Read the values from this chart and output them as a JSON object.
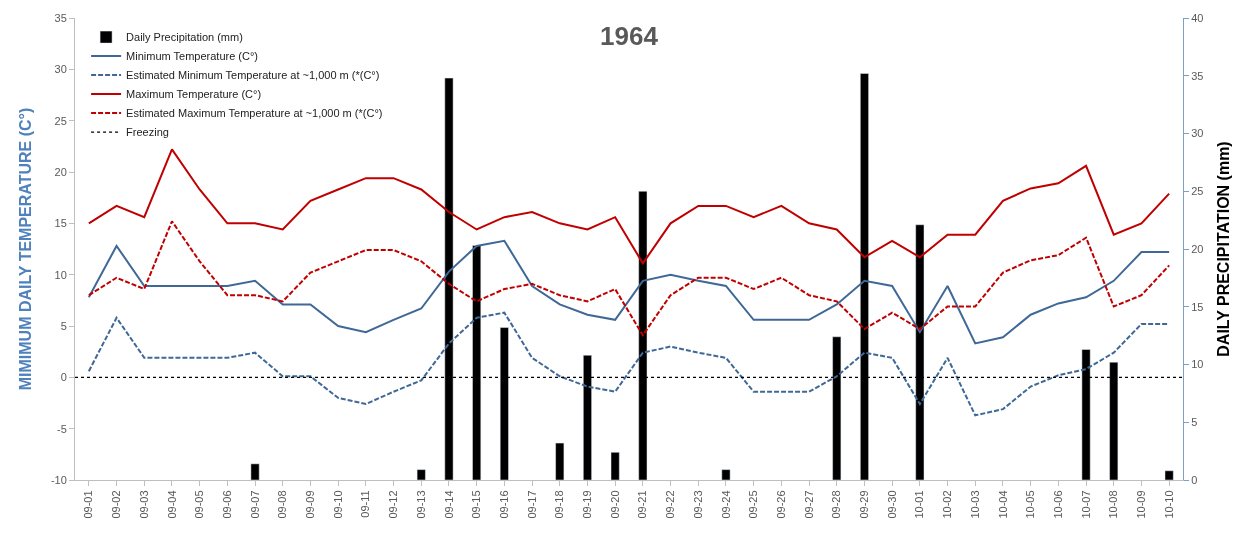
{
  "chart_data": {
    "type": "line",
    "title": "1964",
    "ylabel": "MIMIMUM DAILY TEMPERATURE (C°)",
    "y2label": "DAILY PRECIPITATION (mm)",
    "categories": [
      "09-01",
      "09-02",
      "09-03",
      "09-04",
      "09-05",
      "09-06",
      "09-07",
      "09-08",
      "09-09",
      "09-10",
      "09-11",
      "09-12",
      "09-13",
      "09-14",
      "09-15",
      "09-16",
      "09-17",
      "09-18",
      "09-19",
      "09-20",
      "09-21",
      "09-22",
      "09-23",
      "09-24",
      "09-25",
      "09-26",
      "09-27",
      "09-28",
      "09-29",
      "09-30",
      "10-01",
      "10-02",
      "10-03",
      "10-04",
      "10-05",
      "10-06",
      "10-07",
      "10-08",
      "10-09",
      "10-10"
    ],
    "series": [
      {
        "name": "Daily Precipitation (mm)",
        "type": "bar",
        "axis": "y2",
        "color": "#000000",
        "values": [
          null,
          null,
          null,
          null,
          null,
          null,
          1.4,
          null,
          null,
          null,
          null,
          null,
          0.9,
          34.8,
          20.3,
          13.2,
          null,
          3.2,
          10.8,
          2.4,
          25.0,
          null,
          null,
          0.9,
          null,
          null,
          null,
          12.4,
          35.2,
          null,
          22.1,
          null,
          null,
          null,
          null,
          null,
          11.3,
          10.2,
          null,
          0.8
        ]
      },
      {
        "name": "Minimum Temperature (C°)",
        "color": "#3f6896",
        "line_style": "solid",
        "values": [
          7.8,
          12.8,
          8.9,
          8.9,
          8.9,
          8.9,
          9.4,
          7.1,
          7.1,
          5.0,
          4.4,
          5.6,
          6.7,
          10.3,
          12.8,
          13.3,
          8.9,
          7.1,
          6.1,
          5.6,
          9.4,
          10.0,
          9.4,
          8.9,
          5.6,
          5.6,
          5.6,
          7.1,
          9.4,
          8.9,
          4.4,
          8.9,
          3.3,
          3.9,
          6.1,
          7.2,
          7.8,
          9.4,
          12.2,
          12.2
        ]
      },
      {
        "name": "Estimated Minimum Temperature at ~1,000 m (*(C°)",
        "color": "#3f6896",
        "line_style": "dashed",
        "values": [
          0.6,
          5.8,
          1.9,
          1.9,
          1.9,
          1.9,
          2.4,
          0.1,
          0.1,
          -2.0,
          -2.6,
          -1.4,
          -0.3,
          3.3,
          5.8,
          6.3,
          1.9,
          0.1,
          -0.9,
          -1.4,
          2.4,
          3.0,
          2.4,
          1.9,
          -1.4,
          -1.4,
          -1.4,
          0.1,
          2.4,
          1.9,
          -2.6,
          1.9,
          -3.7,
          -3.1,
          -0.9,
          0.2,
          0.8,
          2.4,
          5.2,
          5.2
        ]
      },
      {
        "name": "Maximum Temperature (C°)",
        "color": "#c00000",
        "line_style": "solid",
        "values": [
          15.0,
          16.7,
          15.6,
          22.2,
          18.3,
          15.0,
          15.0,
          14.4,
          17.2,
          18.3,
          19.4,
          19.4,
          18.3,
          16.1,
          14.4,
          15.6,
          16.1,
          15.0,
          14.4,
          15.6,
          11.1,
          15.0,
          16.7,
          16.7,
          15.6,
          16.7,
          15.0,
          14.4,
          11.7,
          13.3,
          11.7,
          13.9,
          13.9,
          17.2,
          18.4,
          18.9,
          20.6,
          13.9,
          15.0,
          17.9
        ]
      },
      {
        "name": "Estimated Maximum Temperature at ~1,000 m (*(C°)",
        "color": "#c00000",
        "line_style": "dashed",
        "values": [
          8.0,
          9.7,
          8.6,
          15.2,
          11.3,
          8.0,
          8.0,
          7.4,
          10.2,
          11.3,
          12.4,
          12.4,
          11.3,
          9.1,
          7.4,
          8.6,
          9.1,
          8.0,
          7.4,
          8.6,
          4.1,
          8.0,
          9.7,
          9.7,
          8.6,
          9.7,
          8.0,
          7.4,
          4.7,
          6.3,
          4.7,
          6.9,
          6.9,
          10.2,
          11.4,
          11.9,
          13.6,
          6.9,
          8.0,
          10.9
        ]
      }
    ],
    "ref_lines": [
      {
        "axis": "y",
        "value": 0,
        "label": "Freezing",
        "color": "#000000",
        "line_style": "dotted"
      }
    ],
    "ylim": [
      -10,
      35
    ],
    "yticks": [
      -10,
      -5,
      0,
      5,
      10,
      15,
      20,
      25,
      30,
      35
    ],
    "y2lim": [
      0,
      40
    ],
    "y2ticks": [
      0,
      5,
      10,
      15,
      20,
      25,
      30,
      35,
      40
    ],
    "legend": "top left"
  }
}
